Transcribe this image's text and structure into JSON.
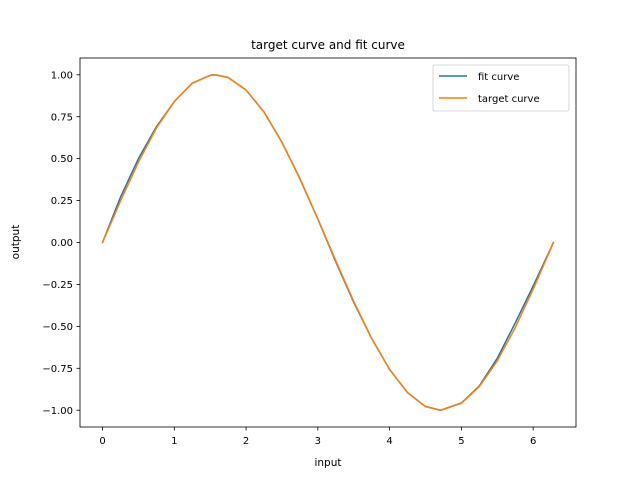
{
  "chart_data": {
    "type": "line",
    "title": "target curve and fit curve",
    "xlabel": "input",
    "ylabel": "output",
    "xlim": [
      -0.314,
      6.597
    ],
    "ylim": [
      -1.1,
      1.1
    ],
    "xticks": [
      0,
      1,
      2,
      3,
      4,
      5,
      6
    ],
    "xtick_labels": [
      "0",
      "1",
      "2",
      "3",
      "4",
      "5",
      "6"
    ],
    "yticks": [
      -1.0,
      -0.75,
      -0.5,
      -0.25,
      0.0,
      0.25,
      0.5,
      0.75,
      1.0
    ],
    "ytick_labels": [
      "−1.00",
      "−0.75",
      "−0.50",
      "−0.25",
      "0.00",
      "0.25",
      "0.50",
      "0.75",
      "1.00"
    ],
    "grid": false,
    "legend_position": "top-right",
    "series": [
      {
        "name": "fit curve",
        "color": "#1f77b4",
        "x": [
          0.0,
          0.25,
          0.5,
          0.75,
          1.0,
          1.25,
          1.5,
          1.571,
          1.75,
          2.0,
          2.25,
          2.5,
          2.75,
          3.0,
          3.25,
          3.5,
          3.75,
          4.0,
          4.25,
          4.5,
          4.712,
          5.0,
          5.25,
          5.5,
          5.75,
          6.0,
          6.283
        ],
        "y": [
          0.0,
          0.27,
          0.5,
          0.69,
          0.84,
          0.95,
          0.997,
          1.0,
          0.984,
          0.909,
          0.778,
          0.598,
          0.38,
          0.14,
          -0.115,
          -0.357,
          -0.572,
          -0.757,
          -0.895,
          -0.978,
          -1.0,
          -0.957,
          -0.855,
          -0.69,
          -0.48,
          -0.26,
          0.0
        ]
      },
      {
        "name": "target curve",
        "color": "#ff7f0e",
        "x": [
          0.0,
          0.25,
          0.5,
          0.75,
          1.0,
          1.25,
          1.5,
          1.571,
          1.75,
          2.0,
          2.25,
          2.5,
          2.75,
          3.0,
          3.25,
          3.5,
          3.75,
          4.0,
          4.25,
          4.5,
          4.712,
          5.0,
          5.25,
          5.5,
          5.75,
          6.0,
          6.283
        ],
        "y": [
          0.0,
          0.247,
          0.479,
          0.682,
          0.841,
          0.949,
          0.997,
          1.0,
          0.984,
          0.909,
          0.778,
          0.598,
          0.382,
          0.141,
          -0.108,
          -0.351,
          -0.572,
          -0.757,
          -0.895,
          -0.978,
          -1.0,
          -0.959,
          -0.859,
          -0.706,
          -0.508,
          -0.279,
          0.0
        ]
      }
    ]
  }
}
